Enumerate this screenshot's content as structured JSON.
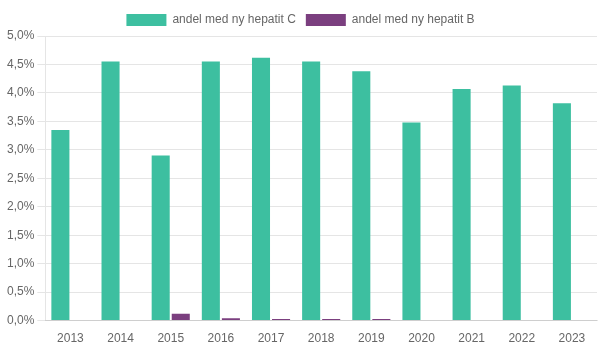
{
  "chart_data": {
    "type": "bar",
    "categories": [
      "2013",
      "2014",
      "2015",
      "2016",
      "2017",
      "2018",
      "2019",
      "2020",
      "2021",
      "2022",
      "2023"
    ],
    "series": [
      {
        "name": "andel med ny hepatit C",
        "color": "#3dbfa0",
        "values": [
          0.0335,
          0.0455,
          0.029,
          0.0455,
          0.0462,
          0.0455,
          0.0438,
          0.0348,
          0.0407,
          0.0413,
          0.0382
        ]
      },
      {
        "name": "andel med ny hepatit B",
        "color": "#7b3f7f",
        "values": [
          0.0,
          0.0,
          0.0012,
          0.0004,
          0.0003,
          0.0003,
          0.0003,
          0.0,
          0.0,
          0.0,
          0.0001
        ]
      }
    ],
    "ylim": [
      0,
      0.05
    ],
    "yticks": [
      {
        "value": 0.0,
        "label": "0,0%"
      },
      {
        "value": 0.005,
        "label": "0,5%"
      },
      {
        "value": 0.01,
        "label": "1,0%"
      },
      {
        "value": 0.015,
        "label": "1,5%"
      },
      {
        "value": 0.02,
        "label": "2,0%"
      },
      {
        "value": 0.025,
        "label": "2,5%"
      },
      {
        "value": 0.03,
        "label": "3,0%"
      },
      {
        "value": 0.035,
        "label": "3,5%"
      },
      {
        "value": 0.04,
        "label": "4,0%"
      },
      {
        "value": 0.045,
        "label": "4,5%"
      },
      {
        "value": 0.05,
        "label": "5,0%"
      }
    ],
    "grid": true,
    "legend": "top"
  }
}
